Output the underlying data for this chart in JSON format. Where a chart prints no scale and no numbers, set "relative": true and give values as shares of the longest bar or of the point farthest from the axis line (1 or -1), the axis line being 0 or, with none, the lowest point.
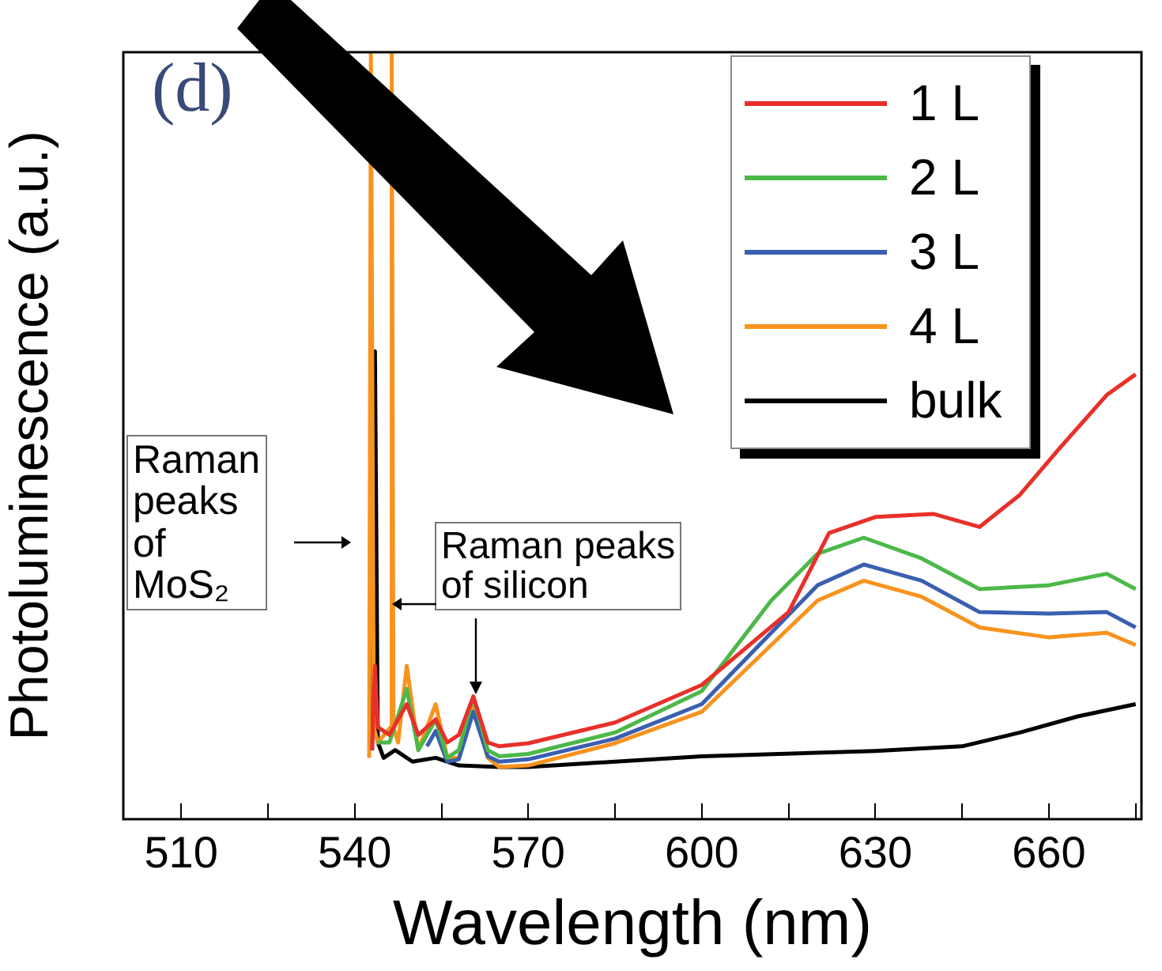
{
  "chart_data": {
    "type": "line",
    "xlabel": "Wavelength (nm)",
    "ylabel": "Photoluminescence (a.u.)",
    "relative": true,
    "xlim": [
      500,
      676
    ],
    "xticks": [
      510,
      540,
      570,
      600,
      630,
      660,
      {
        "value": 525,
        "label": null
      },
      {
        "value": 555,
        "label": null
      },
      {
        "value": 585,
        "label": null
      },
      {
        "value": 615,
        "label": null
      },
      {
        "value": 645,
        "label": null
      },
      {
        "value": 675,
        "label": null
      }
    ],
    "tick_labels": "x",
    "grid": false,
    "legend": "top right",
    "marker": "none",
    "line_style": "solid",
    "annotations": [
      "(d)",
      "Raman peaks of MoS₂",
      "Raman peaks of silicon"
    ],
    "series": [
      {
        "name": "1 L",
        "color": "#e8302a",
        "x": [
          543,
          543.5,
          544,
          546,
          549,
          551,
          554,
          556,
          558,
          560.5,
          563,
          565,
          570,
          585,
          600,
          615,
          622,
          630,
          640,
          648,
          655,
          662,
          670,
          675
        ],
        "values": [
          0.09,
          0.2,
          0.12,
          0.11,
          0.15,
          0.11,
          0.13,
          0.1,
          0.11,
          0.16,
          0.1,
          0.095,
          0.099,
          0.126,
          0.175,
          0.27,
          0.373,
          0.394,
          0.398,
          0.381,
          0.423,
          0.485,
          0.553,
          0.58
        ]
      },
      {
        "name": "2 L",
        "color": "#4cb848",
        "x": [
          544,
          546,
          549,
          551,
          554,
          556,
          558,
          560.5,
          563,
          565,
          570,
          585,
          600,
          612,
          620,
          628,
          638,
          648,
          660,
          670,
          675
        ],
        "values": [
          0.1,
          0.1,
          0.17,
          0.09,
          0.13,
          0.08,
          0.09,
          0.16,
          0.09,
          0.082,
          0.085,
          0.113,
          0.167,
          0.285,
          0.346,
          0.367,
          0.34,
          0.3,
          0.305,
          0.32,
          0.3
        ]
      },
      {
        "name": "3 L",
        "color": "#3a5fb0",
        "x": [
          552.5,
          554,
          556,
          558,
          560.5,
          563,
          565,
          570,
          585,
          600,
          612,
          620,
          628,
          638,
          648,
          660,
          670,
          675
        ],
        "values": [
          0.095,
          0.115,
          0.075,
          0.078,
          0.14,
          0.082,
          0.075,
          0.078,
          0.105,
          0.15,
          0.243,
          0.305,
          0.332,
          0.311,
          0.27,
          0.268,
          0.27,
          0.25
        ]
      },
      {
        "name": "4 L",
        "color": "#f7931e",
        "x": [
          542.5,
          542.8,
          543.3,
          544,
          546.2,
          546.4,
          546.7,
          547.5,
          549,
          551,
          554,
          556,
          558,
          560.5,
          563,
          565,
          570,
          585,
          600,
          612,
          620,
          628,
          638,
          648,
          660,
          670,
          675
        ],
        "values": [
          0.08,
          1,
          0.12,
          0.1,
          0.12,
          1,
          0.12,
          0.1,
          0.2,
          0.09,
          0.15,
          0.08,
          0.08,
          0.15,
          0.08,
          0.068,
          0.07,
          0.099,
          0.14,
          0.227,
          0.285,
          0.311,
          0.29,
          0.25,
          0.237,
          0.243,
          0.227
        ]
      },
      {
        "name": "bulk",
        "color": "#000000",
        "x": [
          543,
          543.5,
          544,
          545,
          547,
          550,
          554,
          558,
          565,
          570,
          600,
          630,
          645,
          655,
          665,
          675
        ],
        "values": [
          0.09,
          0.61,
          0.1,
          0.08,
          0.09,
          0.075,
          0.08,
          0.07,
          0.068,
          0.068,
          0.082,
          0.089,
          0.095,
          0.113,
          0.134,
          0.15
        ]
      }
    ]
  }
}
